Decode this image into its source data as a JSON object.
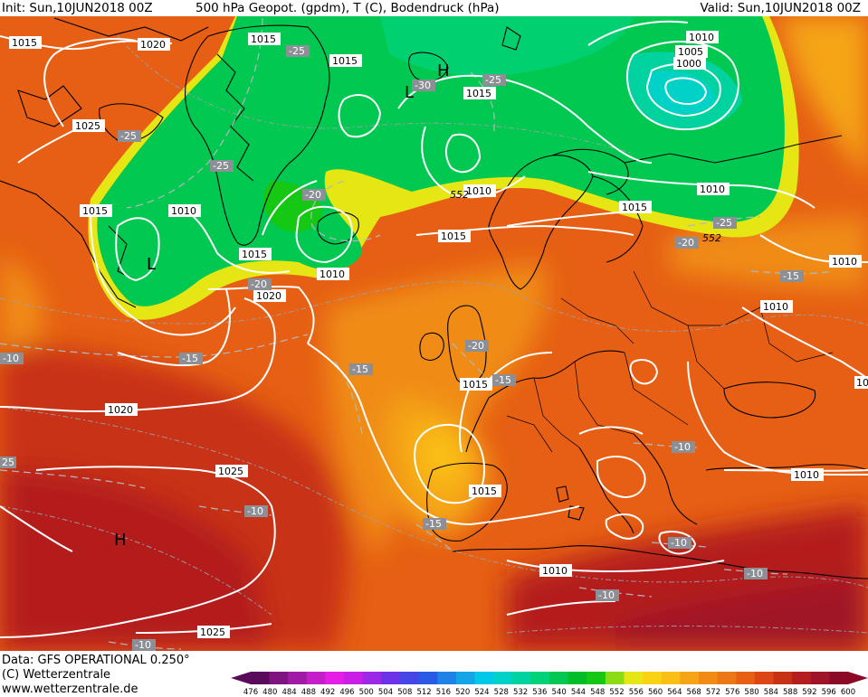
{
  "header": {
    "init": "Init: Sun,10JUN2018 00Z",
    "title": "500 hPa Geopot. (gpdm), T (C), Bodendruck (hPa)",
    "valid": "Valid: Sun,10JUN2018 00Z"
  },
  "footer": {
    "data_line": "Data: GFS OPERATIONAL 0.250°",
    "copyright": "(C) Wetterzentrale",
    "url": "www.wetterzentrale.de"
  },
  "legend": {
    "values": [
      "476",
      "480",
      "484",
      "488",
      "492",
      "496",
      "500",
      "504",
      "508",
      "512",
      "516",
      "520",
      "524",
      "528",
      "532",
      "536",
      "540",
      "544",
      "548",
      "552",
      "556",
      "560",
      "564",
      "568",
      "572",
      "576",
      "580",
      "584",
      "588",
      "592",
      "596",
      "600"
    ],
    "colors": [
      "#5a0a5a",
      "#7d1480",
      "#a01aa5",
      "#c41ec8",
      "#e41ee6",
      "#c81ee6",
      "#9a28e6",
      "#6e32e6",
      "#4646e6",
      "#285ae6",
      "#1e82e6",
      "#14a5e6",
      "#00c8e6",
      "#00d2c8",
      "#00d2a0",
      "#00d278",
      "#00c850",
      "#00be28",
      "#14c814",
      "#8cdc14",
      "#e6e614",
      "#fad214",
      "#fabe14",
      "#f5a514",
      "#f08c14",
      "#eb7814",
      "#e65f14",
      "#dc4614",
      "#c83214",
      "#b41e1e",
      "#a01428",
      "#8c0a28"
    ]
  },
  "map_labels": {
    "pressure": [
      {
        "id": "p1015a",
        "text": "1015"
      },
      {
        "id": "p1020a",
        "text": "1020"
      },
      {
        "id": "p1015b",
        "text": "1015"
      },
      {
        "id": "p1015c",
        "text": "1015"
      },
      {
        "id": "p1025a",
        "text": "1025"
      },
      {
        "id": "p1015d",
        "text": "1015"
      },
      {
        "id": "p1010a",
        "text": "1010"
      },
      {
        "id": "p1010b",
        "text": "1010"
      },
      {
        "id": "p1005",
        "text": "1005"
      },
      {
        "id": "p1000",
        "text": "1000"
      },
      {
        "id": "p1015e",
        "text": "1015"
      },
      {
        "id": "p1010c",
        "text": "1010"
      },
      {
        "id": "p1015f",
        "text": "1015"
      },
      {
        "id": "p1010d",
        "text": "1010"
      },
      {
        "id": "p1015g",
        "text": "1015"
      },
      {
        "id": "p1010e",
        "text": "1010"
      },
      {
        "id": "p1020b",
        "text": "1020"
      },
      {
        "id": "p1015h",
        "text": "1015"
      },
      {
        "id": "p1010f",
        "text": "1010"
      },
      {
        "id": "p1020c",
        "text": "1020"
      },
      {
        "id": "p1025b",
        "text": "1025"
      },
      {
        "id": "p1010g",
        "text": "1010"
      },
      {
        "id": "p1015i",
        "text": "1015"
      },
      {
        "id": "p1010h",
        "text": "1010"
      },
      {
        "id": "p1010i",
        "text": "1010"
      },
      {
        "id": "p1025c",
        "text": "1025"
      },
      {
        "id": "p10j",
        "text": "10"
      }
    ],
    "temperature": [
      {
        "id": "t1",
        "text": "-25"
      },
      {
        "id": "t2",
        "text": "-25"
      },
      {
        "id": "t3",
        "text": "-25"
      },
      {
        "id": "t4",
        "text": "-30"
      },
      {
        "id": "t5",
        "text": "-25"
      },
      {
        "id": "t6",
        "text": "-20"
      },
      {
        "id": "t7",
        "text": "-20"
      },
      {
        "id": "t8",
        "text": "-25"
      },
      {
        "id": "t9",
        "text": "-20"
      },
      {
        "id": "t10",
        "text": "-15"
      },
      {
        "id": "t11",
        "text": "-10"
      },
      {
        "id": "t12",
        "text": "-15"
      },
      {
        "id": "t13",
        "text": "-20"
      },
      {
        "id": "t14",
        "text": "-15"
      },
      {
        "id": "t15",
        "text": "-15"
      },
      {
        "id": "t16",
        "text": "-10"
      },
      {
        "id": "t17",
        "text": "-10"
      },
      {
        "id": "t18",
        "text": "-10"
      },
      {
        "id": "t19",
        "text": "-10"
      },
      {
        "id": "t20",
        "text": "-10"
      },
      {
        "id": "t21",
        "text": "-10"
      },
      {
        "id": "t22",
        "text": "-10"
      },
      {
        "id": "t23",
        "text": "25"
      }
    ],
    "geopotential": [
      {
        "id": "g1",
        "text": "552"
      },
      {
        "id": "g2",
        "text": "552"
      }
    ],
    "pressure_centers": [
      {
        "id": "H1",
        "text": "H"
      },
      {
        "id": "L1",
        "text": "L"
      },
      {
        "id": "L2",
        "text": "L"
      },
      {
        "id": "H2",
        "text": "H"
      }
    ]
  }
}
